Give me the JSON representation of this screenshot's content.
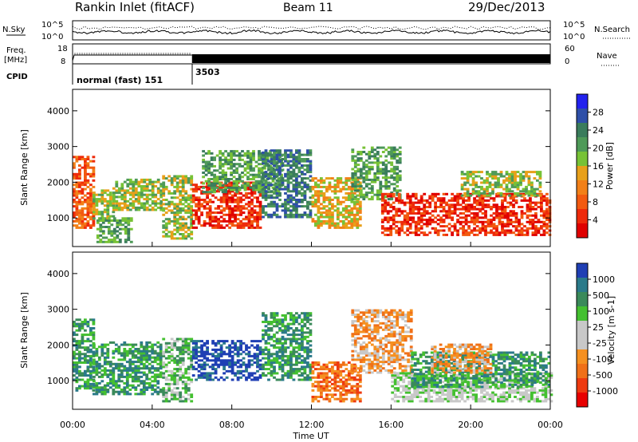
{
  "header": {
    "site": "Rankin Inlet (fitACF)",
    "beam": "Beam 11",
    "date": "29/Dec/2013"
  },
  "status_panel": {
    "nsky_label": "N.Sky",
    "nsky_ticks": [
      "10^5",
      "10^0"
    ],
    "nsearch_label": "N.Search",
    "nsearch_ticks": [
      "10^5",
      "10^0"
    ],
    "freq_label": "Freq.",
    "freq_unit": "[MHz]",
    "freq_ticks": [
      "18",
      "8"
    ],
    "nave_label": "Nave",
    "nave_ticks": [
      "60",
      "0"
    ],
    "cpid_label": "CPID",
    "cpid_segments": [
      {
        "label": "normal (fast) 151",
        "start_hour": 0.0
      },
      {
        "label": "3503",
        "start_hour": 6.0
      }
    ]
  },
  "x_axis": {
    "label": "Time UT",
    "ticks": [
      "00:00",
      "04:00",
      "08:00",
      "12:00",
      "16:00",
      "20:00",
      "00:00"
    ],
    "range_hours": [
      0,
      24
    ]
  },
  "chart_data": [
    {
      "type": "heatmap",
      "name": "power",
      "ylabel": "Slant Range [km]",
      "yticks": [
        "1000",
        "2000",
        "3000",
        "4000"
      ],
      "ylim": [
        200,
        4600
      ],
      "colorbar_label": "Power [dB]",
      "colorbar_ticks": [
        "28",
        "24",
        "20",
        "16",
        "12",
        "8",
        "4"
      ],
      "colorbar_colors": [
        "#2222ee",
        "#2e4fa8",
        "#3a7c5c",
        "#4e9a58",
        "#77c236",
        "#e8a01a",
        "#f28018",
        "#f25a10",
        "#ee2a0a",
        "#e00000"
      ],
      "echo_regions": [
        {
          "t": [
            0.0,
            1.0
          ],
          "r": [
            700,
            2700
          ],
          "c": 7
        },
        {
          "t": [
            1.0,
            2.0
          ],
          "r": [
            900,
            1800
          ],
          "c": 4
        },
        {
          "t": [
            1.2,
            3.0
          ],
          "r": [
            300,
            1000
          ],
          "c": 3
        },
        {
          "t": [
            2.0,
            4.5
          ],
          "r": [
            1200,
            2100
          ],
          "c": 4
        },
        {
          "t": [
            4.5,
            6.0
          ],
          "r": [
            400,
            2200
          ],
          "c": 4
        },
        {
          "t": [
            6.0,
            9.5
          ],
          "r": [
            700,
            2000
          ],
          "c": 8
        },
        {
          "t": [
            6.5,
            10.5
          ],
          "r": [
            1700,
            2900
          ],
          "c": 3
        },
        {
          "t": [
            9.5,
            12.0
          ],
          "r": [
            1000,
            2900
          ],
          "c": 2
        },
        {
          "t": [
            12.0,
            14.5
          ],
          "r": [
            700,
            2100
          ],
          "c": 5
        },
        {
          "t": [
            14.0,
            16.5
          ],
          "r": [
            1500,
            3000
          ],
          "c": 3
        },
        {
          "t": [
            15.5,
            24.0
          ],
          "r": [
            500,
            1700
          ],
          "c": 8
        },
        {
          "t": [
            19.5,
            23.5
          ],
          "r": [
            1600,
            2300
          ],
          "c": 4
        }
      ]
    },
    {
      "type": "heatmap",
      "name": "velocity",
      "ylabel": "Slant Range [km]",
      "yticks": [
        "1000",
        "2000",
        "3000",
        "4000"
      ],
      "ylim": [
        200,
        4600
      ],
      "colorbar_label": "Velocity [m s-1]",
      "colorbar_ticks": [
        "1000",
        "500",
        "100",
        "25",
        "-25",
        "-100",
        "-500",
        "-1000"
      ],
      "colorbar_colors": [
        "#1f3fb4",
        "#2a7a8a",
        "#3a8a5a",
        "#44c030",
        "#c8c8c8",
        "#c8c8c8",
        "#f59020",
        "#f07018",
        "#ee3a10",
        "#e80000"
      ],
      "echo_regions": [
        {
          "t": [
            0.0,
            1.0
          ],
          "r": [
            700,
            2700
          ],
          "c": 2
        },
        {
          "t": [
            1.0,
            4.5
          ],
          "r": [
            600,
            2100
          ],
          "c": 2
        },
        {
          "t": [
            4.5,
            6.0
          ],
          "r": [
            400,
            2200
          ],
          "c": 3
        },
        {
          "t": [
            6.0,
            9.5
          ],
          "r": [
            1000,
            2100
          ],
          "c": 0
        },
        {
          "t": [
            9.5,
            12.0
          ],
          "r": [
            1000,
            2900
          ],
          "c": 2
        },
        {
          "t": [
            12.0,
            14.5
          ],
          "r": [
            400,
            1500
          ],
          "c": 7
        },
        {
          "t": [
            14.0,
            17.0
          ],
          "r": [
            1200,
            3000
          ],
          "c": 6
        },
        {
          "t": [
            16.0,
            24.0
          ],
          "r": [
            400,
            1200
          ],
          "c": 4
        },
        {
          "t": [
            17.0,
            24.0
          ],
          "r": [
            800,
            1800
          ],
          "c": 2
        },
        {
          "t": [
            18.0,
            21.0
          ],
          "r": [
            1200,
            2000
          ],
          "c": 6
        }
      ]
    }
  ],
  "colors": {
    "axis": "#000000",
    "background": "#ffffff"
  }
}
